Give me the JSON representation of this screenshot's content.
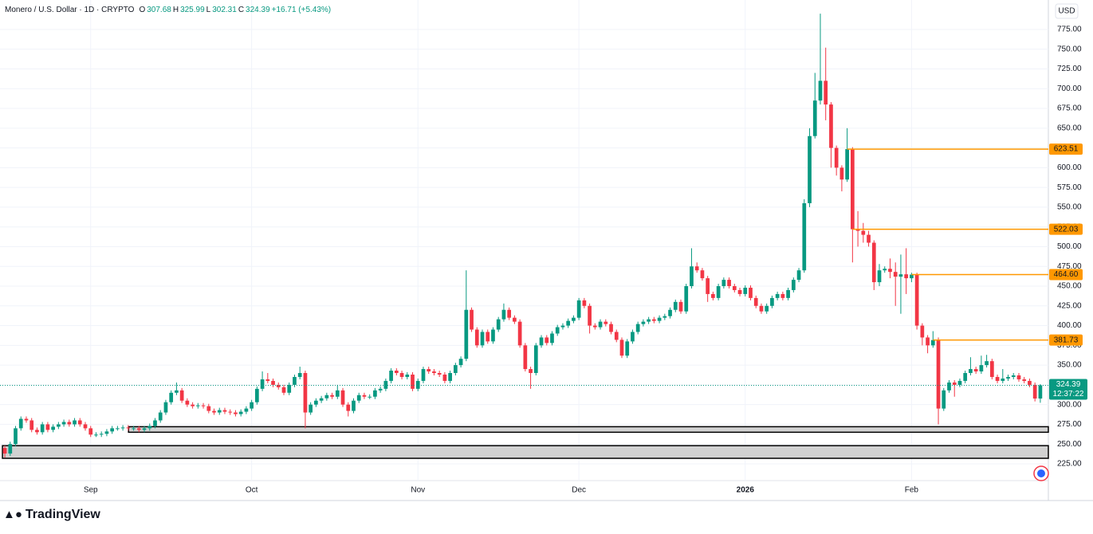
{
  "chart_data": {
    "type": "candlestick",
    "title": "Monero / U.S. Dollar · 1D · CRYPTO",
    "legend": [
      {
        "key": "O",
        "value": "307.68"
      },
      {
        "key": "H",
        "value": "325.99"
      },
      {
        "key": "L",
        "value": "302.31"
      },
      {
        "key": "C",
        "value": "324.39"
      }
    ],
    "change": "+16.71 (+5.43%)",
    "currency": "USD",
    "countdown": "12:37:22",
    "brand": "TradingView",
    "up_color": "#089981",
    "down_color": "#f23645",
    "level_color": "#ff9800",
    "xlim": [
      -0.9,
      194.5
    ],
    "ylim": [
      206.8,
      812.3
    ],
    "xticks": [
      {
        "value": 16,
        "label": "Sep"
      },
      {
        "value": 46,
        "label": "Oct"
      },
      {
        "value": 77,
        "label": "Nov"
      },
      {
        "value": 107,
        "label": "Dec"
      },
      {
        "value": 138,
        "label": "2026"
      },
      {
        "value": 169,
        "label": "Feb"
      }
    ],
    "yticks": [
      {
        "value": 225,
        "label": "225.00"
      },
      {
        "value": 250,
        "label": "250.00"
      },
      {
        "value": 275,
        "label": "275.00"
      },
      {
        "value": 300,
        "label": "300.00"
      },
      {
        "value": 325,
        "label": "325.00"
      },
      {
        "value": 350,
        "label": "350.00"
      },
      {
        "value": 375,
        "label": "375.00"
      },
      {
        "value": 400,
        "label": "400.00"
      },
      {
        "value": 425,
        "label": "425.00"
      },
      {
        "value": 450,
        "label": "450.00"
      },
      {
        "value": 475,
        "label": "475.00"
      },
      {
        "value": 500,
        "label": "500.00"
      },
      {
        "value": 525,
        "label": "525.00"
      },
      {
        "value": 550,
        "label": "550.00"
      },
      {
        "value": 575,
        "label": "575.00"
      },
      {
        "value": 600,
        "label": "600.00"
      },
      {
        "value": 625,
        "label": "625.00"
      },
      {
        "value": 650,
        "label": "650.00"
      },
      {
        "value": 675,
        "label": "675.00"
      },
      {
        "value": 700,
        "label": "700.00"
      },
      {
        "value": 725,
        "label": "725.00"
      },
      {
        "value": 750,
        "label": "750.00"
      },
      {
        "value": 775,
        "label": "775.00"
      }
    ],
    "grid": true,
    "levels": [
      {
        "value": 623.51
      },
      {
        "value": 522.03
      },
      {
        "value": 464.6,
        "label": "464.60"
      },
      {
        "value": 381.73
      }
    ],
    "zones": [
      {
        "low": 265,
        "high": 272,
        "x0": 23.5
      },
      {
        "low": 232,
        "high": 248,
        "x0": 0
      }
    ],
    "open": [
      245,
      238,
      250,
      270,
      282,
      280,
      268,
      265,
      275,
      268,
      272,
      275,
      278,
      275,
      280,
      275,
      270,
      262,
      262,
      263,
      266,
      270,
      270,
      271,
      270,
      270,
      268,
      270,
      273,
      280,
      290,
      303,
      315,
      318,
      305,
      300,
      298,
      299,
      298,
      292,
      290,
      293,
      291,
      290,
      288,
      291,
      295,
      303,
      320,
      332,
      330,
      325,
      322,
      315,
      325,
      335,
      340,
      290,
      300,
      305,
      308,
      312,
      310,
      318,
      300,
      292,
      305,
      312,
      310,
      310,
      318,
      320,
      330,
      343,
      340,
      335,
      338,
      320,
      330,
      345,
      342,
      340,
      338,
      330,
      340,
      350,
      358,
      420,
      395,
      375,
      392,
      380,
      395,
      408,
      420,
      410,
      405,
      375,
      345,
      340,
      375,
      385,
      378,
      390,
      398,
      400,
      406,
      410,
      432,
      425,
      400,
      398,
      405,
      402,
      392,
      382,
      362,
      380,
      392,
      402,
      405,
      408,
      406,
      410,
      412,
      420,
      430,
      418,
      450,
      475,
      470,
      460,
      440,
      435,
      450,
      458,
      450,
      445,
      440,
      448,
      435,
      425,
      418,
      425,
      435,
      440,
      435,
      445,
      458,
      470,
      555,
      640,
      685,
      710,
      680,
      625,
      600,
      585,
      623.51,
      522.03,
      520,
      515,
      505,
      455,
      470,
      472,
      468,
      462,
      465,
      460,
      464.6,
      400,
      385,
      375,
      381.73,
      295,
      318,
      328,
      325,
      330,
      340,
      345,
      342,
      350,
      355,
      335,
      330,
      333,
      335,
      337,
      332,
      330,
      325,
      307.68
    ],
    "high": [
      248,
      253,
      273,
      285,
      285,
      283,
      271,
      278,
      278,
      275,
      278,
      281,
      281,
      283,
      283,
      278,
      273,
      265,
      266,
      269,
      273,
      273,
      274,
      274,
      273,
      273,
      273,
      276,
      283,
      293,
      306,
      318,
      328,
      321,
      308,
      303,
      302,
      302,
      301,
      295,
      296,
      296,
      294,
      293,
      294,
      298,
      306,
      323,
      342,
      340,
      333,
      328,
      325,
      328,
      338,
      348,
      343,
      303,
      308,
      311,
      315,
      315,
      325,
      321,
      303,
      308,
      315,
      315,
      313,
      321,
      323,
      333,
      346,
      346,
      343,
      341,
      341,
      333,
      348,
      348,
      345,
      343,
      341,
      343,
      353,
      361,
      470,
      423,
      398,
      395,
      395,
      398,
      411,
      428,
      423,
      413,
      408,
      378,
      348,
      378,
      388,
      388,
      393,
      401,
      403,
      409,
      413,
      435,
      435,
      428,
      403,
      408,
      408,
      405,
      395,
      385,
      383,
      395,
      405,
      408,
      411,
      411,
      413,
      415,
      423,
      433,
      433,
      453,
      498,
      480,
      473,
      463,
      443,
      453,
      461,
      461,
      453,
      448,
      451,
      451,
      438,
      428,
      428,
      438,
      443,
      443,
      448,
      461,
      473,
      560,
      650,
      720,
      795,
      752,
      683,
      628,
      603,
      650,
      626,
      545,
      530,
      520,
      508,
      478,
      475,
      485,
      480,
      490,
      498,
      467,
      467,
      403,
      388,
      393,
      385,
      321,
      331,
      331,
      333,
      343,
      360,
      348,
      362,
      363,
      358,
      338,
      345,
      338,
      340,
      340,
      335,
      333,
      328,
      325.99
    ],
    "low": [
      233,
      235,
      247,
      267,
      277,
      265,
      262,
      262,
      265,
      265,
      269,
      272,
      272,
      272,
      272,
      267,
      259,
      259,
      259,
      260,
      263,
      267,
      267,
      267,
      267,
      265,
      265,
      267,
      270,
      277,
      287,
      300,
      312,
      302,
      297,
      295,
      295,
      295,
      289,
      287,
      287,
      288,
      287,
      285,
      285,
      288,
      292,
      300,
      317,
      327,
      322,
      319,
      312,
      312,
      322,
      332,
      270,
      287,
      297,
      302,
      305,
      307,
      307,
      297,
      285,
      289,
      302,
      307,
      307,
      307,
      315,
      317,
      327,
      337,
      332,
      332,
      317,
      317,
      327,
      339,
      337,
      335,
      327,
      327,
      337,
      347,
      355,
      392,
      372,
      372,
      377,
      377,
      392,
      405,
      407,
      402,
      372,
      342,
      320,
      337,
      372,
      375,
      375,
      387,
      395,
      397,
      403,
      407,
      422,
      390,
      395,
      395,
      399,
      389,
      379,
      359,
      359,
      377,
      389,
      399,
      402,
      403,
      403,
      407,
      409,
      417,
      415,
      415,
      447,
      467,
      457,
      430,
      432,
      432,
      447,
      447,
      442,
      437,
      437,
      432,
      422,
      415,
      415,
      422,
      432,
      432,
      432,
      442,
      455,
      467,
      550,
      637,
      680,
      660,
      600,
      590,
      570,
      582,
      480,
      500,
      505,
      500,
      445,
      450,
      467,
      460,
      425,
      415,
      440,
      455,
      395,
      375,
      365,
      372,
      275,
      292,
      315,
      310,
      322,
      327,
      337,
      339,
      339,
      347,
      332,
      327,
      327,
      330,
      332,
      329,
      327,
      322,
      304,
      302.31
    ],
    "close": [
      238,
      250,
      270,
      282,
      280,
      268,
      265,
      275,
      268,
      272,
      275,
      278,
      275,
      280,
      275,
      270,
      262,
      262,
      263,
      266,
      270,
      270,
      271,
      270,
      270,
      268,
      270,
      273,
      280,
      290,
      303,
      315,
      318,
      305,
      300,
      298,
      299,
      298,
      292,
      290,
      293,
      291,
      290,
      288,
      291,
      295,
      303,
      320,
      332,
      330,
      325,
      322,
      315,
      325,
      335,
      340,
      290,
      300,
      305,
      308,
      312,
      310,
      318,
      300,
      292,
      305,
      312,
      310,
      310,
      318,
      320,
      330,
      343,
      340,
      335,
      338,
      320,
      330,
      345,
      342,
      340,
      338,
      330,
      340,
      350,
      358,
      420,
      395,
      375,
      392,
      380,
      395,
      408,
      420,
      410,
      405,
      375,
      345,
      340,
      375,
      385,
      378,
      390,
      398,
      400,
      406,
      410,
      432,
      425,
      400,
      398,
      405,
      402,
      392,
      382,
      362,
      380,
      392,
      402,
      405,
      408,
      406,
      410,
      412,
      420,
      430,
      418,
      450,
      475,
      470,
      460,
      440,
      435,
      450,
      458,
      450,
      445,
      440,
      448,
      435,
      425,
      418,
      425,
      435,
      440,
      435,
      445,
      458,
      470,
      555,
      640,
      685,
      710,
      680,
      625,
      600,
      585,
      623.51,
      522.03,
      520,
      515,
      505,
      455,
      470,
      472,
      468,
      462,
      465,
      460,
      464.6,
      400,
      385,
      375,
      381.73,
      295,
      318,
      328,
      325,
      330,
      340,
      345,
      342,
      350,
      355,
      335,
      330,
      333,
      335,
      337,
      332,
      330,
      325,
      307.68,
      324.39
    ]
  }
}
